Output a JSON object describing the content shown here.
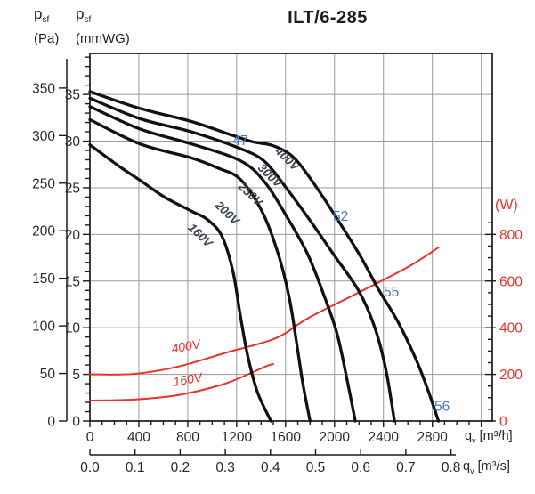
{
  "title": "ILT/6-285",
  "axis_titles": {
    "pa": {
      "sym": "p",
      "sub": "sf",
      "unit": "(Pa)"
    },
    "mmwg": {
      "sym": "p",
      "sub": "sf",
      "unit": "(mmWG)"
    },
    "watts": "(W)",
    "flow_h": {
      "sym": "q",
      "sub": "v",
      "unit": "[m³/h]"
    },
    "flow_s": {
      "sym": "q",
      "sub": "v",
      "unit": "[m³/s]"
    }
  },
  "colors": {
    "curve": "#111111",
    "power": "#e8312a",
    "grid": "#9a9a9a",
    "border": "#1a1a1a",
    "sound_label": "#4a76c9",
    "voltage_label": "#3b4254",
    "axis_text": "#2a2a2a"
  },
  "chart_data": {
    "type": "line",
    "title": "ILT/6-285",
    "xlabel": "qv [m³/h] (second axis: qv [m³/s])",
    "ylabel_left": "psf (Pa) and psf (mmWG)",
    "ylabel_right": "(W)",
    "legend_position": "inline-curve-labels",
    "grid": "on",
    "xlim_m3h": [
      0,
      3290
    ],
    "ylim_mmwg": [
      0,
      39.4
    ],
    "pa_per_mmwg": 9.80665,
    "x_ticks_m3h": [
      0,
      400,
      800,
      1200,
      1600,
      2000,
      2400,
      2800
    ],
    "x_minor_step_m3h": 100,
    "x_ticks_m3s": [
      0.0,
      0.1,
      0.2,
      0.3,
      0.4,
      0.5,
      0.6,
      0.7,
      0.8
    ],
    "y_ticks_mmwg": [
      0,
      5,
      10,
      15,
      20,
      25,
      30,
      35
    ],
    "y_minor_step_mmwg": 1,
    "y_ticks_pa": [
      0,
      50,
      100,
      150,
      200,
      250,
      300,
      350
    ],
    "y_ticks_w": [
      0,
      200,
      400,
      600,
      800
    ],
    "y_minor_step_w": 50,
    "w_max_minor": 850,
    "w_per_grid_step": 200,
    "grid_x_step_m3h": 400,
    "grid_y_step_mmwg": 5,
    "pressure_curves": [
      {
        "name": "160V",
        "label_q": 880,
        "label_p": 19.6,
        "label_rot": 44,
        "points": [
          [
            0,
            29.6
          ],
          [
            250,
            27.2
          ],
          [
            410,
            25.8
          ],
          [
            610,
            24.0
          ],
          [
            830,
            22.5
          ],
          [
            960,
            21.6
          ],
          [
            1080,
            19.8
          ],
          [
            1170,
            16.0
          ],
          [
            1230,
            11.3
          ],
          [
            1290,
            7.0
          ],
          [
            1370,
            3.1
          ],
          [
            1480,
            0
          ]
        ]
      },
      {
        "name": "200V",
        "label_q": 1100,
        "label_p": 22.0,
        "label_rot": 44,
        "points": [
          [
            0,
            32.3
          ],
          [
            410,
            29.7
          ],
          [
            830,
            28.2
          ],
          [
            1050,
            27.1
          ],
          [
            1230,
            25.9
          ],
          [
            1410,
            22.4
          ],
          [
            1540,
            17.9
          ],
          [
            1630,
            13.2
          ],
          [
            1690,
            8.4
          ],
          [
            1740,
            4.1
          ],
          [
            1800,
            0
          ]
        ]
      },
      {
        "name": "250V",
        "label_q": 1290,
        "label_p": 24.0,
        "label_rot": 44,
        "points": [
          [
            0,
            33.7
          ],
          [
            410,
            31.3
          ],
          [
            830,
            29.7
          ],
          [
            1230,
            27.9
          ],
          [
            1430,
            25.6
          ],
          [
            1610,
            21.9
          ],
          [
            1780,
            17.9
          ],
          [
            1910,
            13.6
          ],
          [
            2020,
            9.4
          ],
          [
            2100,
            4.6
          ],
          [
            2170,
            0
          ]
        ]
      },
      {
        "name": "300V",
        "label_q": 1450,
        "label_p": 26.0,
        "label_rot": 44,
        "points": [
          [
            0,
            34.6
          ],
          [
            410,
            32.4
          ],
          [
            830,
            31.0
          ],
          [
            1230,
            29.2
          ],
          [
            1430,
            27.8
          ],
          [
            1610,
            24.9
          ],
          [
            1800,
            21.5
          ],
          [
            1990,
            17.9
          ],
          [
            2200,
            13.9
          ],
          [
            2330,
            10.0
          ],
          [
            2420,
            5.5
          ],
          [
            2490,
            0
          ]
        ]
      },
      {
        "name": "400V",
        "label_q": 1590,
        "label_p": 27.8,
        "label_rot": 44,
        "points": [
          [
            0,
            35.3
          ],
          [
            410,
            33.5
          ],
          [
            830,
            32.1
          ],
          [
            1170,
            30.6
          ],
          [
            1340,
            29.9
          ],
          [
            1500,
            29.5
          ],
          [
            1670,
            28.2
          ],
          [
            1850,
            25.1
          ],
          [
            2030,
            21.5
          ],
          [
            2210,
            17.7
          ],
          [
            2360,
            14.1
          ],
          [
            2520,
            10.6
          ],
          [
            2670,
            6.5
          ],
          [
            2770,
            3.1
          ],
          [
            2850,
            0
          ]
        ]
      }
    ],
    "power_curves": [
      {
        "name": "400V",
        "label_q": 790,
        "label_w": 302,
        "label_rot": -10,
        "points": [
          [
            0,
            200
          ],
          [
            360,
            202
          ],
          [
            720,
            233
          ],
          [
            1120,
            294
          ],
          [
            1520,
            355
          ],
          [
            1780,
            440
          ],
          [
            2180,
            546
          ],
          [
            2600,
            660
          ],
          [
            2850,
            744
          ]
        ]
      },
      {
        "name": "160V",
        "label_q": 805,
        "label_w": 160,
        "label_rot": -10,
        "points": [
          [
            0,
            88
          ],
          [
            360,
            92
          ],
          [
            720,
            111
          ],
          [
            1080,
            156
          ],
          [
            1300,
            202
          ],
          [
            1450,
            237
          ],
          [
            1500,
            244
          ]
        ]
      }
    ],
    "sound_labels": [
      {
        "value": "47",
        "q": 1230,
        "p": 30.1
      },
      {
        "value": "52",
        "q": 2050,
        "p": 22.0
      },
      {
        "value": "55",
        "q": 2465,
        "p": 13.9
      },
      {
        "value": "56",
        "q": 2880,
        "p": 1.6
      }
    ]
  }
}
